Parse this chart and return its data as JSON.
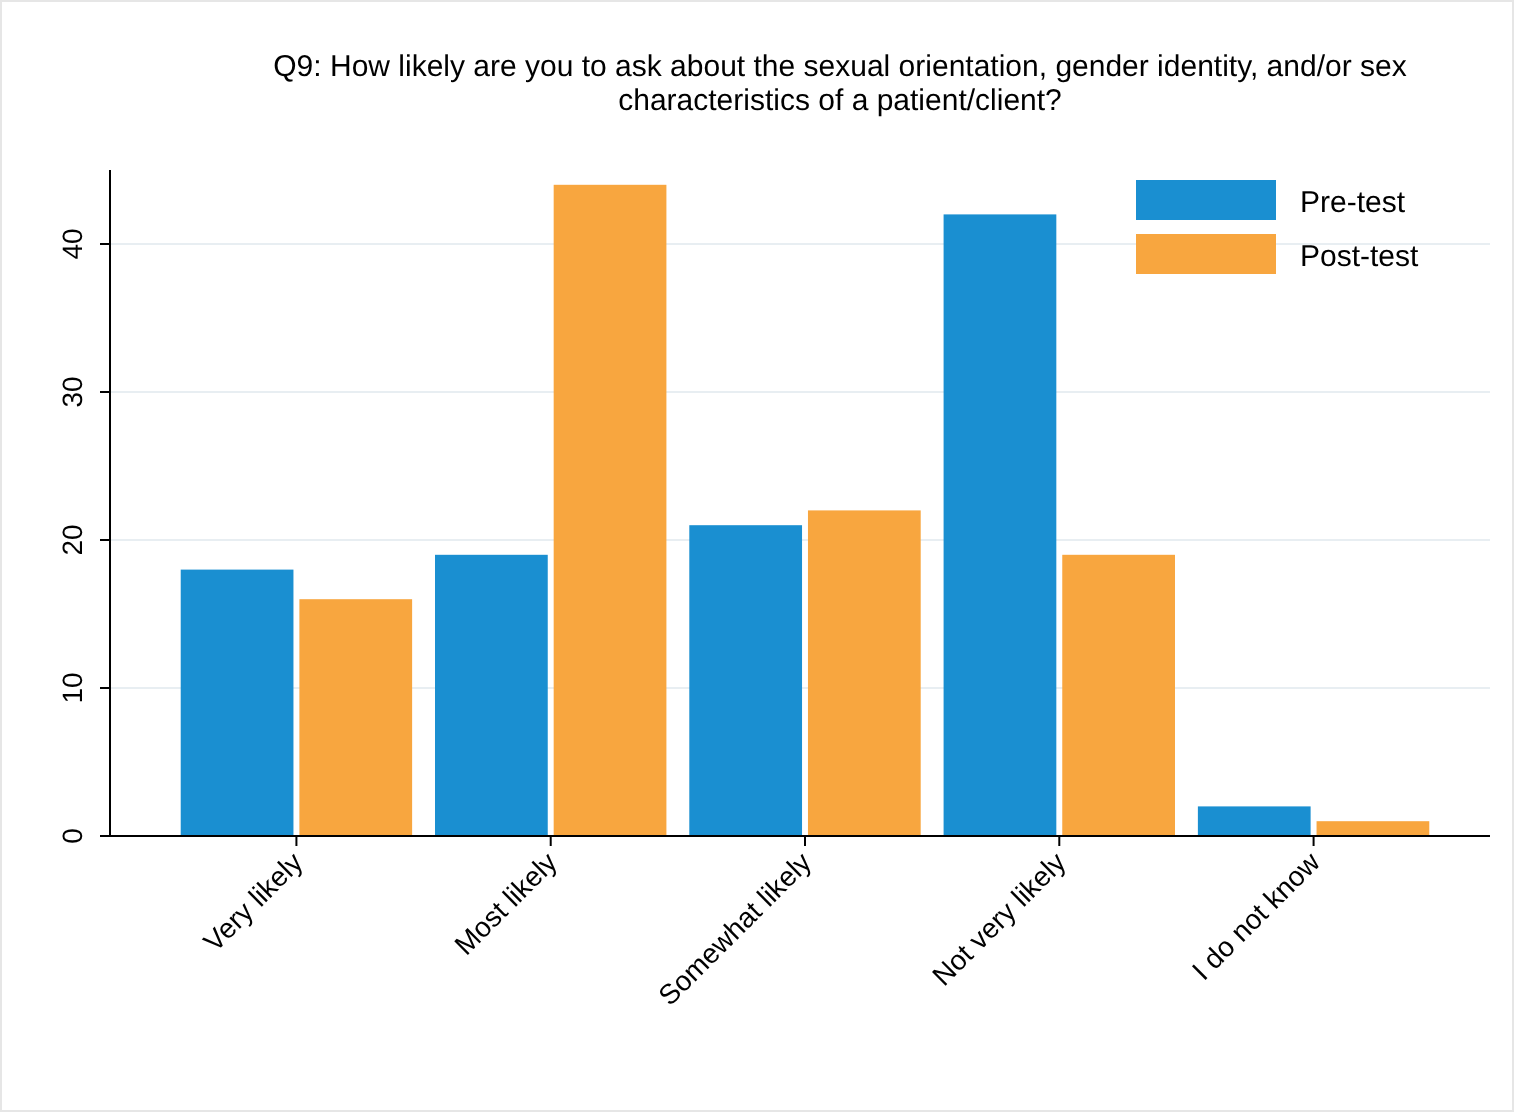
{
  "chart_data": {
    "type": "bar",
    "title": "Q9: How likely are you to ask about the sexual orientation, gender identity, and/or sex characteristics of a patient/client?",
    "categories": [
      "Very likely",
      "Most likely",
      "Somewhat likely",
      "Not very likely",
      "I do not know"
    ],
    "series": [
      {
        "name": "Pre-test",
        "color": "#1a8fd1",
        "values": [
          18,
          19,
          21,
          42,
          2
        ]
      },
      {
        "name": "Post-test",
        "color": "#f8a63f",
        "values": [
          16,
          44,
          22,
          19,
          1
        ]
      }
    ],
    "ylim": [
      0,
      45
    ],
    "yticks": [
      0,
      10,
      20,
      30,
      40
    ],
    "grid": "y",
    "legend": "top right"
  }
}
